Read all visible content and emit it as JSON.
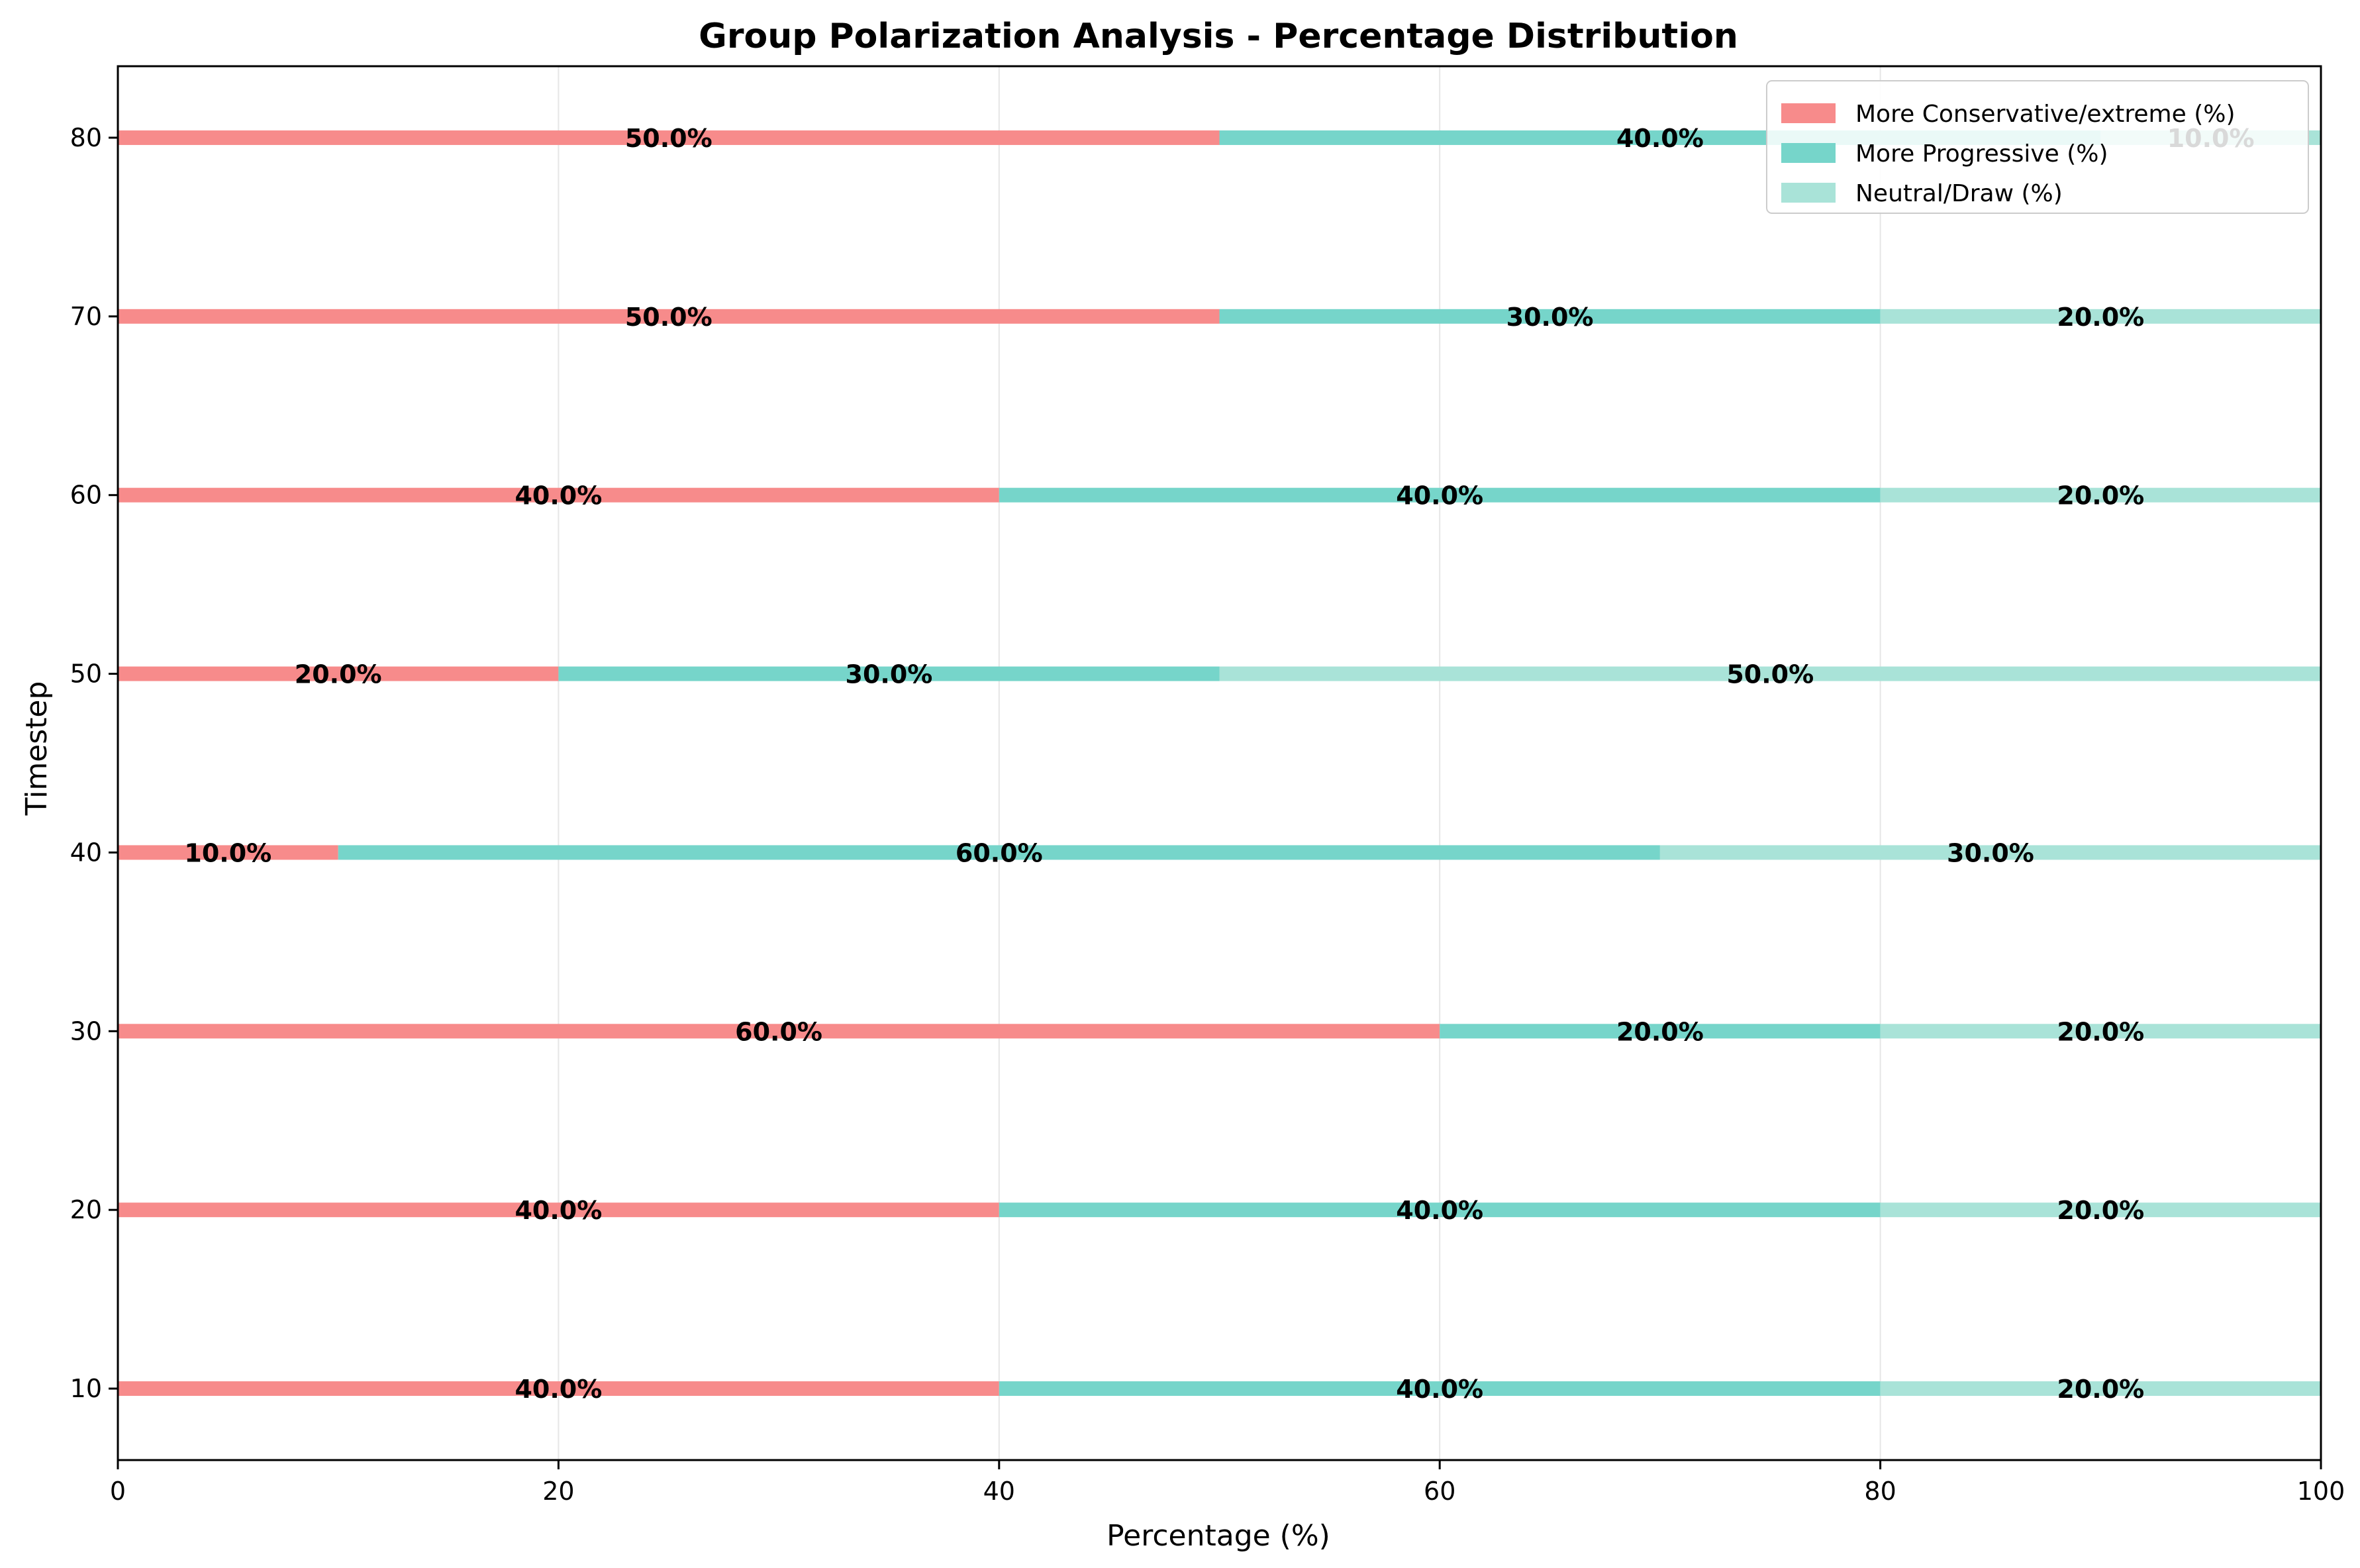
{
  "chart_data": {
    "type": "bar",
    "orientation": "horizontal",
    "stacked": true,
    "title": "Group Polarization Analysis - Percentage Distribution",
    "xlabel": "Percentage (%)",
    "ylabel": "Timestep",
    "xlim": [
      0,
      100
    ],
    "ylim": [
      6,
      84
    ],
    "xticks": [
      0,
      20,
      40,
      60,
      80,
      100
    ],
    "yticks": [
      10,
      20,
      30,
      40,
      50,
      60,
      70,
      80
    ],
    "grid": "vertical",
    "legend_position": "top-right",
    "categories": [
      10,
      20,
      30,
      40,
      50,
      60,
      70,
      80
    ],
    "series": [
      {
        "name": "More Conservative/extreme (%)",
        "color": "#f78b8b",
        "values": [
          40,
          40,
          60,
          10,
          20,
          40,
          50,
          50
        ]
      },
      {
        "name": "More Progressive (%)",
        "color": "#76d5ca",
        "values": [
          40,
          40,
          20,
          60,
          30,
          40,
          30,
          40
        ]
      },
      {
        "name": "Neutral/Draw (%)",
        "color": "#a9e3d8",
        "values": [
          20,
          20,
          20,
          30,
          50,
          20,
          20,
          10
        ]
      }
    ]
  }
}
